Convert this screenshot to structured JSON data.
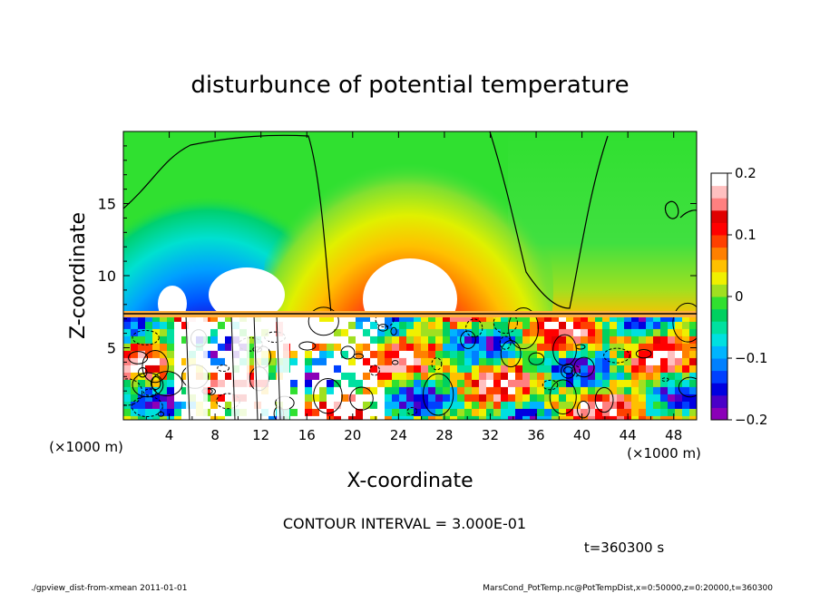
{
  "chart_data": {
    "type": "heatmap",
    "title": "disturbunce of potential temperature",
    "xlabel": "X-coordinate",
    "ylabel": "Z-coordinate",
    "x_unit": "(×1000 m)",
    "y_unit": "(×1000 m)",
    "xlim": [
      0,
      50
    ],
    "ylim": [
      0,
      20
    ],
    "x_ticks": [
      "4",
      "8",
      "12",
      "16",
      "20",
      "24",
      "28",
      "32",
      "36",
      "40",
      "44",
      "48"
    ],
    "y_ticks": [
      "5",
      "10",
      "15"
    ],
    "colorbar": {
      "range": [
        -0.2,
        0.2
      ],
      "tick_labels": [
        "0.2",
        "0.1",
        "0",
        "−0.1",
        "−0.2"
      ],
      "colors": [
        "#8b00b8",
        "#4a00c8",
        "#0000e0",
        "#0040ff",
        "#0080ff",
        "#00b4ff",
        "#00e0e0",
        "#00e0a0",
        "#00d060",
        "#30e030",
        "#a0e020",
        "#f0f000",
        "#ffc000",
        "#ff8000",
        "#ff4000",
        "#ff0000",
        "#e00000",
        "#ff8080",
        "#ffc0c0",
        "#ffffff"
      ]
    },
    "contour_interval": "CONTOUR INTERVAL = 3.000E-01",
    "time_label": "t=360300 s",
    "features": [
      {
        "name": "warm anomaly",
        "x_center": 24,
        "z_center": 11,
        "sign": "positive"
      },
      {
        "name": "cool anomaly",
        "x_center": 12,
        "z_center": 11,
        "sign": "negative"
      }
    ]
  },
  "footer": {
    "left": "./gpview_dist-from-xmean  2011-01-01",
    "right": "MarsCond_PotTemp.nc@PotTempDist,x=0:50000,z=0:20000,t=360300"
  }
}
